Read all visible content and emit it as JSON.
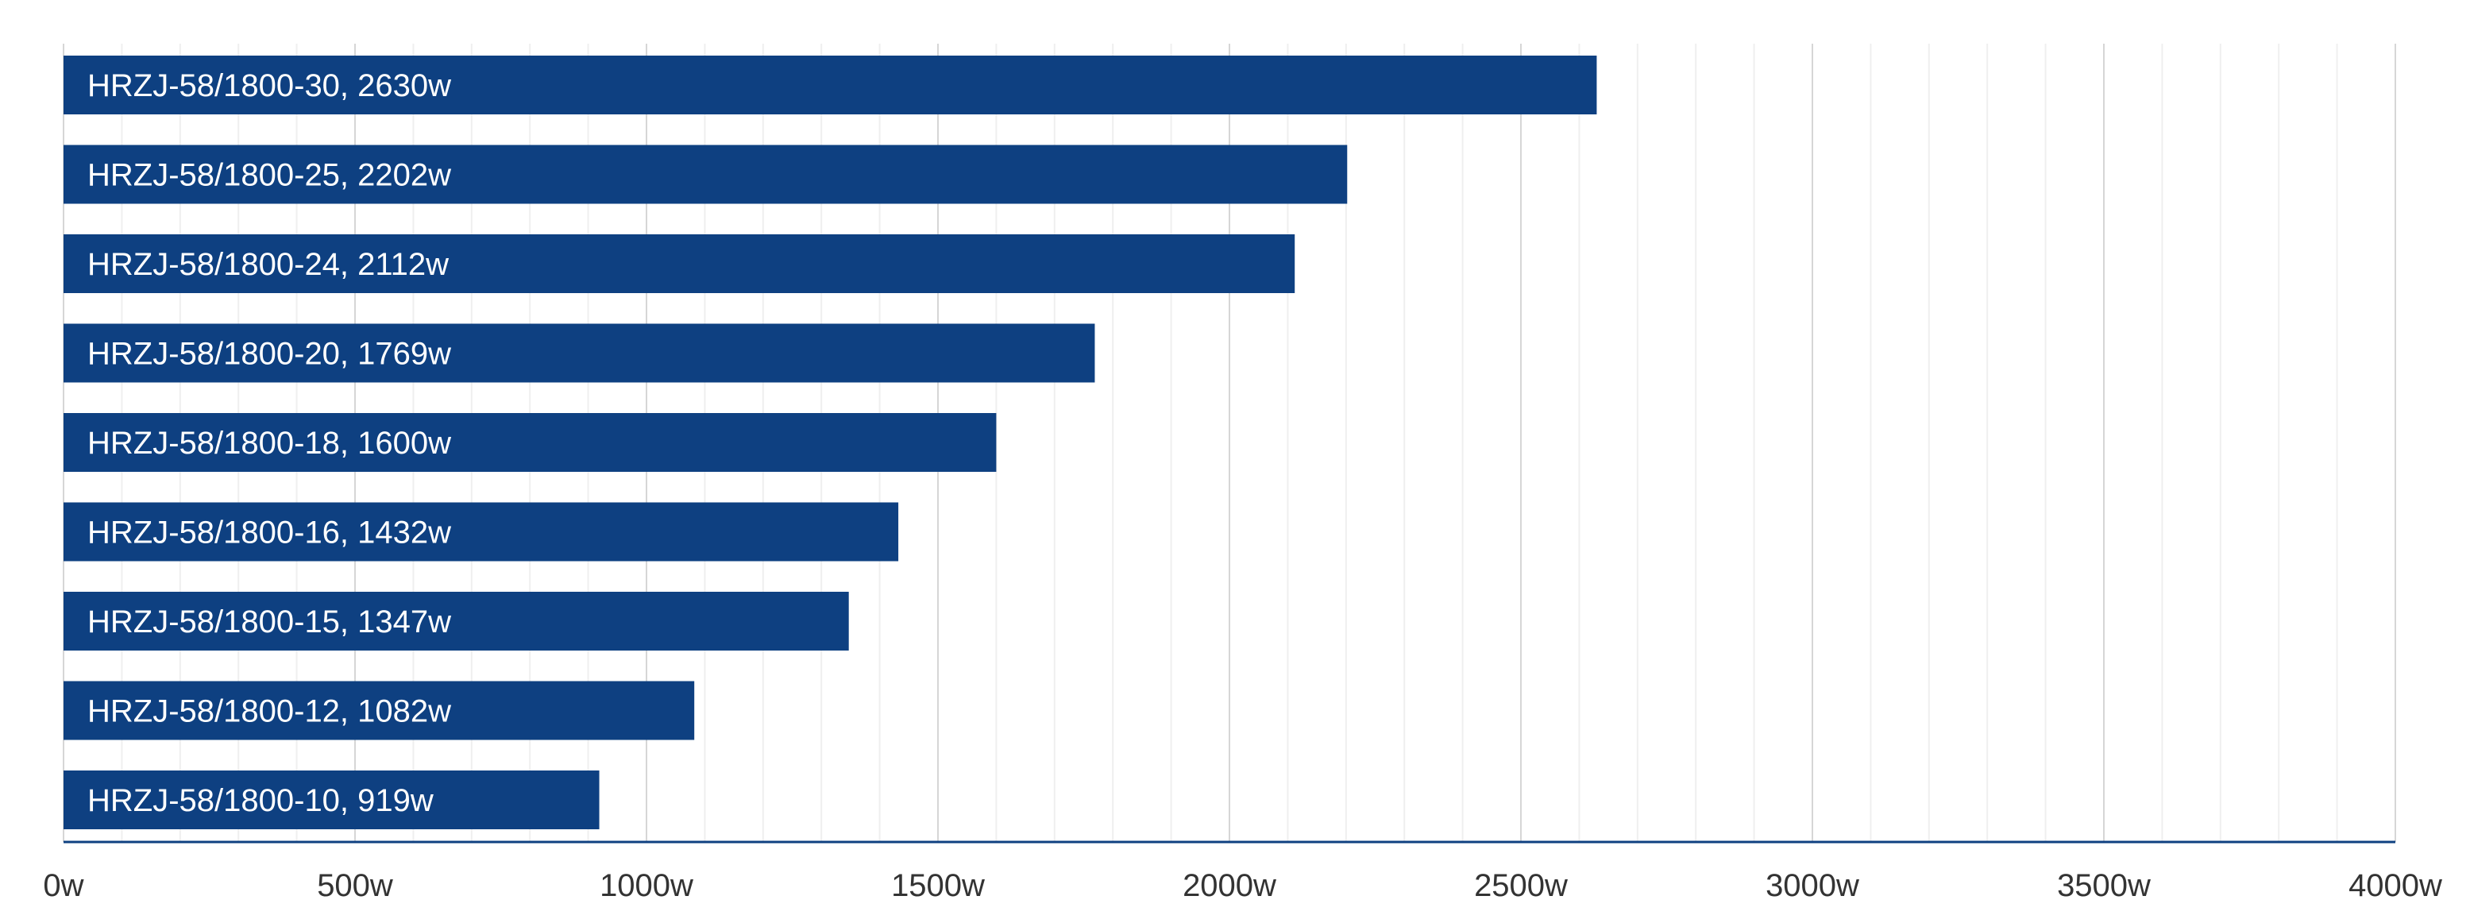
{
  "chart_data": {
    "type": "bar",
    "orientation": "horizontal",
    "title": "",
    "xlabel": "",
    "ylabel": "",
    "categories": [
      "HRZJ-58/1800-30",
      "HRZJ-58/1800-25",
      "HRZJ-58/1800-24",
      "HRZJ-58/1800-20",
      "HRZJ-58/1800-18",
      "HRZJ-58/1800-16",
      "HRZJ-58/1800-15",
      "HRZJ-58/1800-12",
      "HRZJ-58/1800-10"
    ],
    "values": [
      2630,
      2202,
      2112,
      1769,
      1600,
      1432,
      1347,
      1082,
      919
    ],
    "data_labels": [
      "HRZJ-58/1800-30, 2630w",
      "HRZJ-58/1800-25, 2202w",
      "HRZJ-58/1800-24, 2112w",
      "HRZJ-58/1800-20, 1769w",
      "HRZJ-58/1800-18, 1600w",
      "HRZJ-58/1800-16, 1432w",
      "HRZJ-58/1800-15, 1347w",
      "HRZJ-58/1800-12, 1082w",
      "HRZJ-58/1800-10, 919w"
    ],
    "xlim": [
      0,
      4000
    ],
    "x_ticks": [
      0,
      500,
      1000,
      1500,
      2000,
      2500,
      3000,
      3500,
      4000
    ],
    "x_tick_labels": [
      "0w",
      "500w",
      "1000w",
      "1500w",
      "2000w",
      "2500w",
      "3000w",
      "3500w",
      "4000w"
    ],
    "minor_grid_step": 100,
    "grid": true,
    "legend": "none",
    "colors": {
      "bar": "#0e4081",
      "axis": "#0e4081",
      "major_grid": "#d6d6d6",
      "minor_grid": "#efefef",
      "tick_text": "#333333",
      "bar_text": "#ffffff"
    }
  }
}
